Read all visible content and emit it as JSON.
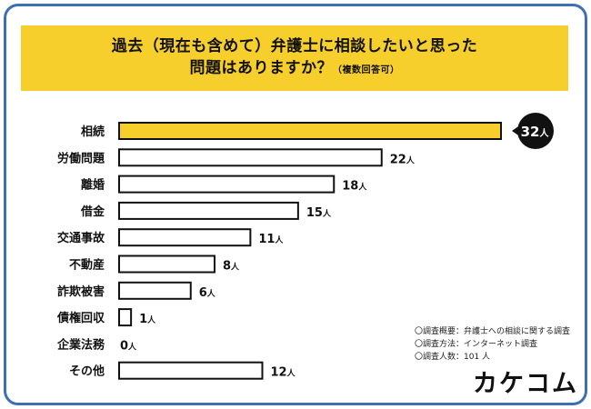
{
  "title": {
    "line1": "過去（現在も含めて）弁護士に相談したいと思った",
    "line2": "問題はありますか？",
    "note": "（複数回答可）"
  },
  "chart_data": {
    "type": "bar",
    "orientation": "horizontal",
    "categories": [
      "相続",
      "労働問題",
      "離婚",
      "借金",
      "交通事故",
      "不動産",
      "詐欺被害",
      "債権回収",
      "企業法務",
      "その他"
    ],
    "values": [
      32,
      22,
      18,
      15,
      11,
      8,
      6,
      1,
      0,
      12
    ],
    "unit": "人",
    "highlight_index": 0,
    "colors": {
      "highlight": "#f7cf2c",
      "bar": "#ffffff",
      "outline": "#111111",
      "callout": "#111111"
    }
  },
  "notes": [
    "〇調査概要：弁護士への相談に関する調査",
    "〇調査方法：インターネット調査",
    "〇調査人数：101 人"
  ],
  "logo": {
    "text": "カケコム"
  },
  "colors": {
    "frame": "#3d6fb6",
    "title_bg": "#f7cf2c"
  }
}
